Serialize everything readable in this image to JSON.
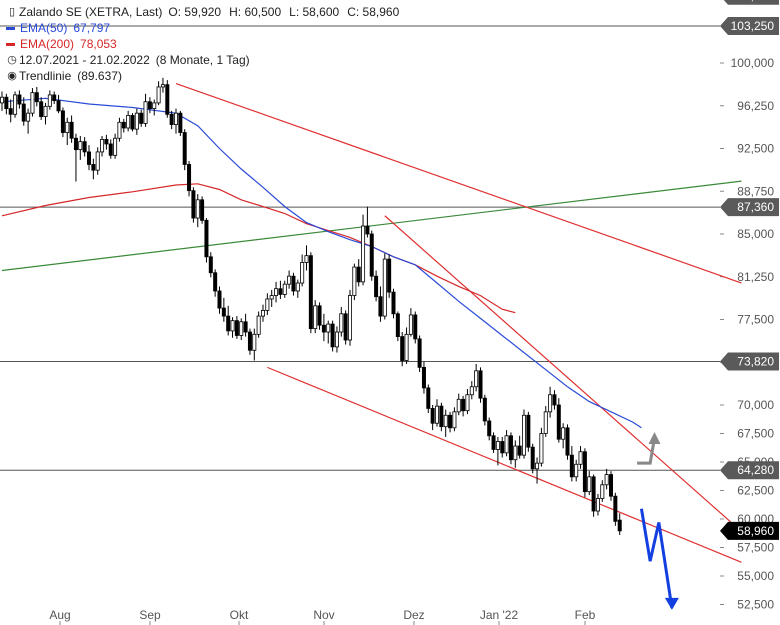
{
  "legend": {
    "instrument": "Zalando SE (XETRA, Last)",
    "ohlc": {
      "open": "O: 59,920",
      "high": "H: 60,500",
      "low": "L: 58,600",
      "close": "C: 58,960"
    },
    "ema50": {
      "label": "EMA(50)",
      "value": "67,797",
      "color": "#2a4bd7"
    },
    "ema200": {
      "label": "EMA(200)",
      "value": "78,053",
      "color": "#d62728"
    },
    "range": "12.07.2021 - 21.02.2022",
    "duration": "(8 Monate, 1 Tag)",
    "trend": {
      "label": "Trendlinie",
      "value": "(89.637)"
    }
  },
  "chart_data": {
    "type": "candlestick",
    "y_axis": {
      "position": "right",
      "ticks": [
        "100,000",
        "96,250",
        "92,500",
        "88,750",
        "85,000",
        "81,250",
        "77,500",
        "73,750",
        "70,000",
        "67,500",
        "65,000",
        "62,500",
        "60,000",
        "57,500",
        "55,000",
        "52,500"
      ]
    },
    "x_axis": {
      "ticks": [
        "Aug",
        "Sep",
        "Okt",
        "Nov",
        "Dez",
        "Jan '22",
        "Feb"
      ]
    },
    "price_badges": [
      {
        "text": "105,900",
        "price": 105.9
      },
      {
        "text": "103,250",
        "price": 103.25
      },
      {
        "text": "87,360",
        "price": 87.36
      },
      {
        "text": "73,820",
        "price": 73.82
      },
      {
        "text": "64,280",
        "price": 64.28
      },
      {
        "text": "58,960",
        "price": 58.96,
        "style": "black"
      }
    ],
    "colors": {
      "up": "#ffffff",
      "down": "#000000",
      "ema50": "#2a4bd7",
      "ema200": "#d62728",
      "trend": "#3a8a3a",
      "channel": "#e03030",
      "level": "#555555",
      "arrow_blue": "#1240e0",
      "arrow_gray": "#888888"
    },
    "candles": [
      [
        96.5,
        97.5,
        95.8,
        97
      ],
      [
        97,
        97.3,
        95.5,
        96
      ],
      [
        96,
        96.8,
        94.8,
        95.5
      ],
      [
        95.5,
        97.5,
        95.2,
        97.2
      ],
      [
        97.2,
        97.6,
        96,
        96.4
      ],
      [
        96.4,
        97,
        94.5,
        94.9
      ],
      [
        94.9,
        96,
        93.8,
        95.6
      ],
      [
        95.6,
        97.8,
        95.3,
        97.4
      ],
      [
        97.4,
        97.9,
        96.2,
        96.6
      ],
      [
        96.6,
        97,
        95,
        95.3
      ],
      [
        95.3,
        96.5,
        94.6,
        96.2
      ],
      [
        96.2,
        97.6,
        95.9,
        97.2
      ],
      [
        97.2,
        97.5,
        96.4,
        96.7
      ],
      [
        96.7,
        97.2,
        95.6,
        95.8
      ],
      [
        95.8,
        96.1,
        93.5,
        93.9
      ],
      [
        93.9,
        95.2,
        92.8,
        94.8
      ],
      [
        94.8,
        95.4,
        93,
        93.4
      ],
      [
        93.4,
        93.8,
        89.6,
        92.4
      ],
      [
        92.4,
        93.6,
        91.5,
        93.1
      ],
      [
        93.1,
        93.5,
        91.8,
        92.2
      ],
      [
        92.2,
        92.8,
        90.6,
        91.1
      ],
      [
        91.1,
        91.6,
        89.8,
        90.6
      ],
      [
        90.6,
        92.6,
        90.2,
        92.2
      ],
      [
        92.2,
        93.6,
        91.8,
        93.3
      ],
      [
        93.3,
        93.7,
        92.4,
        92.9
      ],
      [
        92.9,
        93.3,
        91.6,
        91.9
      ],
      [
        91.9,
        93.8,
        91.6,
        93.4
      ],
      [
        93.4,
        95.2,
        93.1,
        94.8
      ],
      [
        94.8,
        95.1,
        93.9,
        94.3
      ],
      [
        94.3,
        95.8,
        94,
        95.4
      ],
      [
        95.4,
        95.6,
        94,
        94.2
      ],
      [
        94.2,
        96,
        93.7,
        95.6
      ],
      [
        95.6,
        95.9,
        94.4,
        94.7
      ],
      [
        94.7,
        97.3,
        94.4,
        96.6
      ],
      [
        96.6,
        97,
        95.6,
        96
      ],
      [
        96,
        96.8,
        95.4,
        96.5
      ],
      [
        96.5,
        98.4,
        96.3,
        97.9
      ],
      [
        97.9,
        98.7,
        97.4,
        98.1
      ],
      [
        98.1,
        98.5,
        95.2,
        95.5
      ],
      [
        95.5,
        95.8,
        94.2,
        94.6
      ],
      [
        94.6,
        96,
        93.8,
        95.6
      ],
      [
        95.6,
        95.8,
        93.6,
        93.9
      ],
      [
        93.9,
        94.2,
        90.6,
        91.1
      ],
      [
        91.1,
        91.4,
        88.3,
        88.8
      ],
      [
        88.8,
        89.1,
        86,
        86.4
      ],
      [
        86.4,
        88.5,
        85.6,
        88
      ],
      [
        88,
        88.3,
        85.9,
        86.2
      ],
      [
        86.2,
        86.4,
        82.5,
        83
      ],
      [
        83,
        83.4,
        81.2,
        81.6
      ],
      [
        81.6,
        81.9,
        79.5,
        80
      ],
      [
        80,
        80.4,
        78,
        78.5
      ],
      [
        78.5,
        79.4,
        77.3,
        77.8
      ],
      [
        77.8,
        78.7,
        76.1,
        76.5
      ],
      [
        76.5,
        77.7,
        75.9,
        77.4
      ],
      [
        77.4,
        77.8,
        75.8,
        76.1
      ],
      [
        76.1,
        77.6,
        75.7,
        77.3
      ],
      [
        77.3,
        78,
        76,
        76.4
      ],
      [
        76.4,
        76.7,
        74.4,
        74.8
      ],
      [
        74.8,
        76.7,
        73.9,
        76.2
      ],
      [
        76.2,
        78.2,
        75.9,
        77.8
      ],
      [
        77.8,
        78.8,
        77.3,
        78.3
      ],
      [
        78.3,
        79.8,
        77.9,
        79.3
      ],
      [
        79.3,
        80.1,
        78.6,
        79.6
      ],
      [
        79.6,
        80.8,
        79,
        80.2
      ],
      [
        80.2,
        80.9,
        79.3,
        79.7
      ],
      [
        79.7,
        80.9,
        79.4,
        80.6
      ],
      [
        80.6,
        81.8,
        80.2,
        81.3
      ],
      [
        81.3,
        81.6,
        79.6,
        80
      ],
      [
        80,
        81,
        79.4,
        80.7
      ],
      [
        80.7,
        83.2,
        80.4,
        82.5
      ],
      [
        82.5,
        84,
        81.8,
        83.1
      ],
      [
        83.1,
        83.4,
        76.3,
        76.7
      ],
      [
        76.7,
        79.2,
        76.3,
        78.7
      ],
      [
        78.7,
        79,
        76.6,
        77
      ],
      [
        77,
        78,
        75.6,
        76.4
      ],
      [
        76.4,
        77.4,
        75.4,
        77.1
      ],
      [
        77.1,
        77.4,
        74.7,
        75.1
      ],
      [
        75.1,
        76.9,
        74.6,
        76.4
      ],
      [
        76.4,
        78.6,
        76,
        78
      ],
      [
        78,
        78.3,
        75.3,
        75.7
      ],
      [
        75.7,
        80.1,
        75.2,
        79.6
      ],
      [
        79.6,
        82.4,
        79.2,
        82.1
      ],
      [
        82.1,
        82.8,
        80.4,
        80.8
      ],
      [
        80.8,
        86.7,
        80.5,
        85.7
      ],
      [
        85.7,
        87.4,
        84.7,
        85
      ],
      [
        85,
        85.3,
        80.9,
        81.3
      ],
      [
        81.3,
        81.8,
        79.1,
        79.5
      ],
      [
        79.5,
        80.4,
        77.3,
        77.8
      ],
      [
        77.8,
        83.3,
        77.5,
        82.8
      ],
      [
        82.8,
        83.2,
        79.4,
        79.9
      ],
      [
        79.9,
        80.2,
        77.6,
        78
      ],
      [
        78,
        78.2,
        75.6,
        76
      ],
      [
        76,
        76.4,
        73.4,
        73.9
      ],
      [
        73.9,
        76.8,
        73.6,
        76.2
      ],
      [
        76.2,
        78.5,
        76,
        77.9
      ],
      [
        77.9,
        78.2,
        75.4,
        75.8
      ],
      [
        75.8,
        76.1,
        72.9,
        73.3
      ],
      [
        73.3,
        73.8,
        71,
        71.5
      ],
      [
        71.5,
        71.8,
        69.3,
        69.7
      ],
      [
        69.7,
        70,
        67.8,
        68.4
      ],
      [
        68.4,
        70.5,
        68.1,
        69.9
      ],
      [
        69.9,
        70.2,
        67.7,
        68.1
      ],
      [
        68.1,
        69.6,
        67.2,
        69.1
      ],
      [
        69.1,
        69.4,
        67.6,
        68
      ],
      [
        68,
        69.8,
        67.7,
        69.4
      ],
      [
        69.4,
        71,
        69.1,
        70.5
      ],
      [
        70.5,
        70.8,
        69,
        69.5
      ],
      [
        69.5,
        71.4,
        69.2,
        70.9
      ],
      [
        70.9,
        72.1,
        70.5,
        71.6
      ],
      [
        71.6,
        73.6,
        71.2,
        73
      ],
      [
        73,
        73.3,
        70.2,
        70.6
      ],
      [
        70.6,
        70.9,
        68.2,
        68.6
      ],
      [
        68.6,
        68.9,
        66.9,
        67.3
      ],
      [
        67.3,
        67.6,
        65.8,
        66.1
      ],
      [
        66.1,
        67.2,
        64.7,
        66.8
      ],
      [
        66.8,
        67.2,
        65.4,
        65.8
      ],
      [
        65.8,
        67.8,
        65.5,
        67.3
      ],
      [
        67.3,
        67.6,
        64.8,
        65.2
      ],
      [
        65.2,
        66.9,
        64.5,
        66.4
      ],
      [
        66.4,
        67.3,
        65.3,
        65.6
      ],
      [
        65.6,
        69.6,
        65.3,
        69.1
      ],
      [
        69.1,
        69.4,
        65.9,
        66.3
      ],
      [
        66.3,
        66.6,
        64,
        64.4
      ],
      [
        64.4,
        65.4,
        63.1,
        64.9
      ],
      [
        64.9,
        68,
        64.6,
        67.5
      ],
      [
        67.5,
        69.9,
        67.2,
        69.4
      ],
      [
        69.4,
        71.6,
        68.9,
        70.9
      ],
      [
        70.9,
        71.3,
        69.6,
        70
      ],
      [
        70,
        70.6,
        66.7,
        67
      ],
      [
        67,
        68.4,
        66.2,
        68
      ],
      [
        68,
        68.3,
        65.2,
        65.6
      ],
      [
        65.6,
        66.4,
        63.3,
        63.7
      ],
      [
        63.7,
        65.2,
        63.3,
        64.8
      ],
      [
        64.8,
        66.4,
        64.4,
        65.9
      ],
      [
        65.9,
        66.2,
        61.9,
        62.4
      ],
      [
        62.4,
        64.2,
        62.1,
        63.7
      ],
      [
        63.7,
        63.9,
        60.2,
        60.7
      ],
      [
        60.7,
        62.2,
        60.3,
        61.8
      ],
      [
        61.8,
        63.4,
        61.5,
        63
      ],
      [
        63,
        64.4,
        62.6,
        63.9
      ],
      [
        63.9,
        64.2,
        61.6,
        62
      ],
      [
        62,
        62.3,
        59.4,
        59.8
      ],
      [
        59.9,
        60.5,
        58.6,
        58.96
      ]
    ],
    "ema50": [
      [
        0,
        96.6
      ],
      [
        10,
        96.9
      ],
      [
        20,
        96.4
      ],
      [
        30,
        96.1
      ],
      [
        40,
        95.6
      ],
      [
        45,
        94.5
      ],
      [
        50,
        92.5
      ],
      [
        55,
        90.7
      ],
      [
        60,
        89.1
      ],
      [
        65,
        87.4
      ],
      [
        70,
        86
      ],
      [
        75,
        85.2
      ],
      [
        80,
        84.5
      ],
      [
        85,
        83.9
      ],
      [
        90,
        83
      ],
      [
        95,
        82.3
      ],
      [
        100,
        80.7
      ],
      [
        105,
        79.1
      ],
      [
        110,
        77.6
      ],
      [
        115,
        76.1
      ],
      [
        120,
        74.6
      ],
      [
        125,
        73.1
      ],
      [
        130,
        71.6
      ],
      [
        135,
        70.3
      ],
      [
        140,
        69.4
      ],
      [
        145,
        68.5
      ],
      [
        147,
        68
      ]
    ],
    "ema200": [
      [
        0,
        86.6
      ],
      [
        10,
        87.5
      ],
      [
        20,
        88.2
      ],
      [
        30,
        88.7
      ],
      [
        40,
        89.3
      ],
      [
        45,
        89.4
      ],
      [
        50,
        88.9
      ],
      [
        55,
        88
      ],
      [
        60,
        87.4
      ],
      [
        65,
        86.8
      ],
      [
        70,
        85.9
      ],
      [
        75,
        85.3
      ],
      [
        80,
        84.7
      ],
      [
        85,
        83.9
      ],
      [
        90,
        83
      ],
      [
        95,
        82.3
      ],
      [
        100,
        81.3
      ],
      [
        105,
        80.4
      ],
      [
        110,
        79.6
      ],
      [
        115,
        78.4
      ],
      [
        118,
        78.1
      ]
    ],
    "trendline": {
      "from": [
        0,
        81.8
      ],
      "to": [
        170,
        89.64
      ]
    },
    "channel_upper": [
      {
        "from": [
          40,
          98.2
        ],
        "to": [
          170,
          80.7
        ]
      },
      {
        "from": [
          88,
          86.6
        ],
        "to": [
          170,
          58.9
        ]
      }
    ],
    "channel_lower": {
      "from": [
        61,
        73.3
      ],
      "to": [
        170,
        56.2
      ]
    },
    "horizontal_levels": [
      {
        "price": 105.9
      },
      {
        "price": 103.25
      },
      {
        "price": 87.36
      },
      {
        "price": 73.82
      },
      {
        "price": 64.28
      }
    ],
    "arrow_blue": [
      [
        147,
        60.9
      ],
      [
        149,
        56.3
      ],
      [
        151,
        59.7
      ],
      [
        154,
        52.2
      ]
    ],
    "arrow_gray": [
      [
        146,
        64.9
      ],
      [
        149,
        64.9
      ],
      [
        150,
        67.1
      ]
    ]
  }
}
